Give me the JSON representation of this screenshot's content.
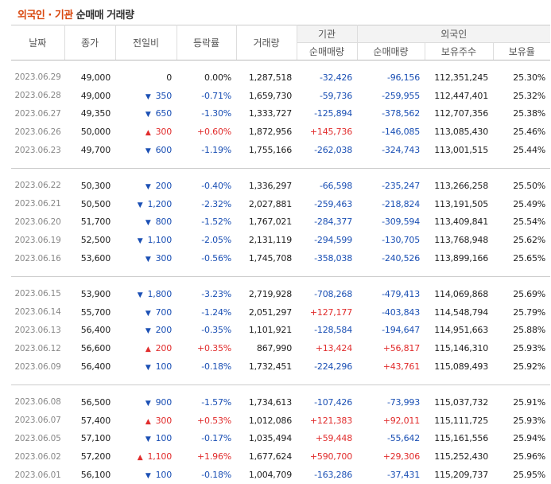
{
  "title": {
    "foreign": "외국인",
    "separator": "·",
    "institution": "기관",
    "rest": "순매매 거래량"
  },
  "header": {
    "date": "날짜",
    "close": "종가",
    "change": "전일비",
    "rate": "등락률",
    "volume": "거래량",
    "institution_group": "기관",
    "inst_net": "순매매량",
    "foreign_group": "외국인",
    "foreign_net": "순매매량",
    "foreign_holdings": "보유주수",
    "foreign_ratio": "보유율"
  },
  "colors": {
    "up": "#e12c2c",
    "down": "#1a4fb4",
    "accent": "#d9480f"
  },
  "groups": [
    {
      "rows": [
        {
          "date": "2023.06.29",
          "close": "49,000",
          "dir": "none",
          "change": "0",
          "rate": "0.00%",
          "volume": "1,287,518",
          "inst": "-32,426",
          "foreign": "-96,156",
          "holdings": "112,351,245",
          "ratio": "25.30%"
        },
        {
          "date": "2023.06.28",
          "close": "49,000",
          "dir": "down",
          "change": "350",
          "rate": "-0.71%",
          "volume": "1,659,730",
          "inst": "-59,736",
          "foreign": "-259,955",
          "holdings": "112,447,401",
          "ratio": "25.32%"
        },
        {
          "date": "2023.06.27",
          "close": "49,350",
          "dir": "down",
          "change": "650",
          "rate": "-1.30%",
          "volume": "1,333,727",
          "inst": "-125,894",
          "foreign": "-378,562",
          "holdings": "112,707,356",
          "ratio": "25.38%"
        },
        {
          "date": "2023.06.26",
          "close": "50,000",
          "dir": "up",
          "change": "300",
          "rate": "+0.60%",
          "volume": "1,872,956",
          "inst": "+145,736",
          "foreign": "-146,085",
          "holdings": "113,085,430",
          "ratio": "25.46%"
        },
        {
          "date": "2023.06.23",
          "close": "49,700",
          "dir": "down",
          "change": "600",
          "rate": "-1.19%",
          "volume": "1,755,166",
          "inst": "-262,038",
          "foreign": "-324,743",
          "holdings": "113,001,515",
          "ratio": "25.44%"
        }
      ]
    },
    {
      "rows": [
        {
          "date": "2023.06.22",
          "close": "50,300",
          "dir": "down",
          "change": "200",
          "rate": "-0.40%",
          "volume": "1,336,297",
          "inst": "-66,598",
          "foreign": "-235,247",
          "holdings": "113,266,258",
          "ratio": "25.50%"
        },
        {
          "date": "2023.06.21",
          "close": "50,500",
          "dir": "down",
          "change": "1,200",
          "rate": "-2.32%",
          "volume": "2,027,881",
          "inst": "-259,463",
          "foreign": "-218,824",
          "holdings": "113,191,505",
          "ratio": "25.49%"
        },
        {
          "date": "2023.06.20",
          "close": "51,700",
          "dir": "down",
          "change": "800",
          "rate": "-1.52%",
          "volume": "1,767,021",
          "inst": "-284,377",
          "foreign": "-309,594",
          "holdings": "113,409,841",
          "ratio": "25.54%"
        },
        {
          "date": "2023.06.19",
          "close": "52,500",
          "dir": "down",
          "change": "1,100",
          "rate": "-2.05%",
          "volume": "2,131,119",
          "inst": "-294,599",
          "foreign": "-130,705",
          "holdings": "113,768,948",
          "ratio": "25.62%"
        },
        {
          "date": "2023.06.16",
          "close": "53,600",
          "dir": "down",
          "change": "300",
          "rate": "-0.56%",
          "volume": "1,745,708",
          "inst": "-358,038",
          "foreign": "-240,526",
          "holdings": "113,899,166",
          "ratio": "25.65%"
        }
      ]
    },
    {
      "rows": [
        {
          "date": "2023.06.15",
          "close": "53,900",
          "dir": "down",
          "change": "1,800",
          "rate": "-3.23%",
          "volume": "2,719,928",
          "inst": "-708,268",
          "foreign": "-479,413",
          "holdings": "114,069,868",
          "ratio": "25.69%"
        },
        {
          "date": "2023.06.14",
          "close": "55,700",
          "dir": "down",
          "change": "700",
          "rate": "-1.24%",
          "volume": "2,051,297",
          "inst": "+127,177",
          "foreign": "-403,843",
          "holdings": "114,548,794",
          "ratio": "25.79%"
        },
        {
          "date": "2023.06.13",
          "close": "56,400",
          "dir": "down",
          "change": "200",
          "rate": "-0.35%",
          "volume": "1,101,921",
          "inst": "-128,584",
          "foreign": "-194,647",
          "holdings": "114,951,663",
          "ratio": "25.88%"
        },
        {
          "date": "2023.06.12",
          "close": "56,600",
          "dir": "up",
          "change": "200",
          "rate": "+0.35%",
          "volume": "867,990",
          "inst": "+13,424",
          "foreign": "+56,817",
          "holdings": "115,146,310",
          "ratio": "25.93%"
        },
        {
          "date": "2023.06.09",
          "close": "56,400",
          "dir": "down",
          "change": "100",
          "rate": "-0.18%",
          "volume": "1,732,451",
          "inst": "-224,296",
          "foreign": "+43,761",
          "holdings": "115,089,493",
          "ratio": "25.92%"
        }
      ]
    },
    {
      "rows": [
        {
          "date": "2023.06.08",
          "close": "56,500",
          "dir": "down",
          "change": "900",
          "rate": "-1.57%",
          "volume": "1,734,613",
          "inst": "-107,426",
          "foreign": "-73,993",
          "holdings": "115,037,732",
          "ratio": "25.91%"
        },
        {
          "date": "2023.06.07",
          "close": "57,400",
          "dir": "up",
          "change": "300",
          "rate": "+0.53%",
          "volume": "1,012,086",
          "inst": "+121,383",
          "foreign": "+92,011",
          "holdings": "115,111,725",
          "ratio": "25.93%"
        },
        {
          "date": "2023.06.05",
          "close": "57,100",
          "dir": "down",
          "change": "100",
          "rate": "-0.17%",
          "volume": "1,035,494",
          "inst": "+59,448",
          "foreign": "-55,642",
          "holdings": "115,161,556",
          "ratio": "25.94%"
        },
        {
          "date": "2023.06.02",
          "close": "57,200",
          "dir": "up",
          "change": "1,100",
          "rate": "+1.96%",
          "volume": "1,677,624",
          "inst": "+590,700",
          "foreign": "+29,306",
          "holdings": "115,252,430",
          "ratio": "25.96%"
        },
        {
          "date": "2023.06.01",
          "close": "56,100",
          "dir": "down",
          "change": "100",
          "rate": "-0.18%",
          "volume": "1,004,709",
          "inst": "-163,286",
          "foreign": "-37,431",
          "holdings": "115,209,737",
          "ratio": "25.95%"
        }
      ]
    }
  ]
}
